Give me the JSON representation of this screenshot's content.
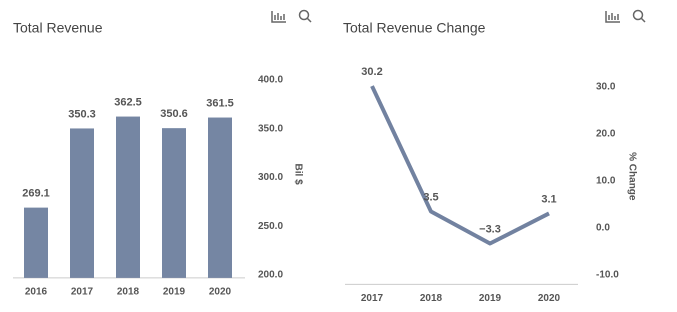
{
  "chart_data": [
    {
      "type": "bar",
      "title": "Total Revenue",
      "y_label": "Bil $",
      "categories": [
        "2016",
        "2017",
        "2018",
        "2019",
        "2020"
      ],
      "values": [
        269.1,
        350.3,
        362.5,
        350.6,
        361.5
      ],
      "color": "#7586a3",
      "ylim": [
        197,
        410
      ],
      "yticks": [
        {
          "value": 200,
          "label": "200.0"
        },
        {
          "value": 250,
          "label": "250.0"
        },
        {
          "value": 300,
          "label": "300.0"
        },
        {
          "value": 350,
          "label": "350.0"
        },
        {
          "value": 400,
          "label": "400.0"
        }
      ]
    },
    {
      "type": "line",
      "title": "Total Revenue Change",
      "y_label": "% Change",
      "categories": [
        "2017",
        "2018",
        "2019",
        "2020"
      ],
      "values": [
        30.2,
        3.5,
        -3.3,
        3.1
      ],
      "value_labels": [
        "30.2",
        "3.5",
        "−3.3",
        "3.1"
      ],
      "color": "#7282a0",
      "ylim": [
        -12,
        34
      ],
      "yticks": [
        {
          "value": -10,
          "label": "-10.0"
        },
        {
          "value": 0,
          "label": "0.0"
        },
        {
          "value": 10,
          "label": "10.0"
        },
        {
          "value": 20,
          "label": "20.0"
        },
        {
          "value": 30,
          "label": "30.0"
        }
      ]
    }
  ]
}
